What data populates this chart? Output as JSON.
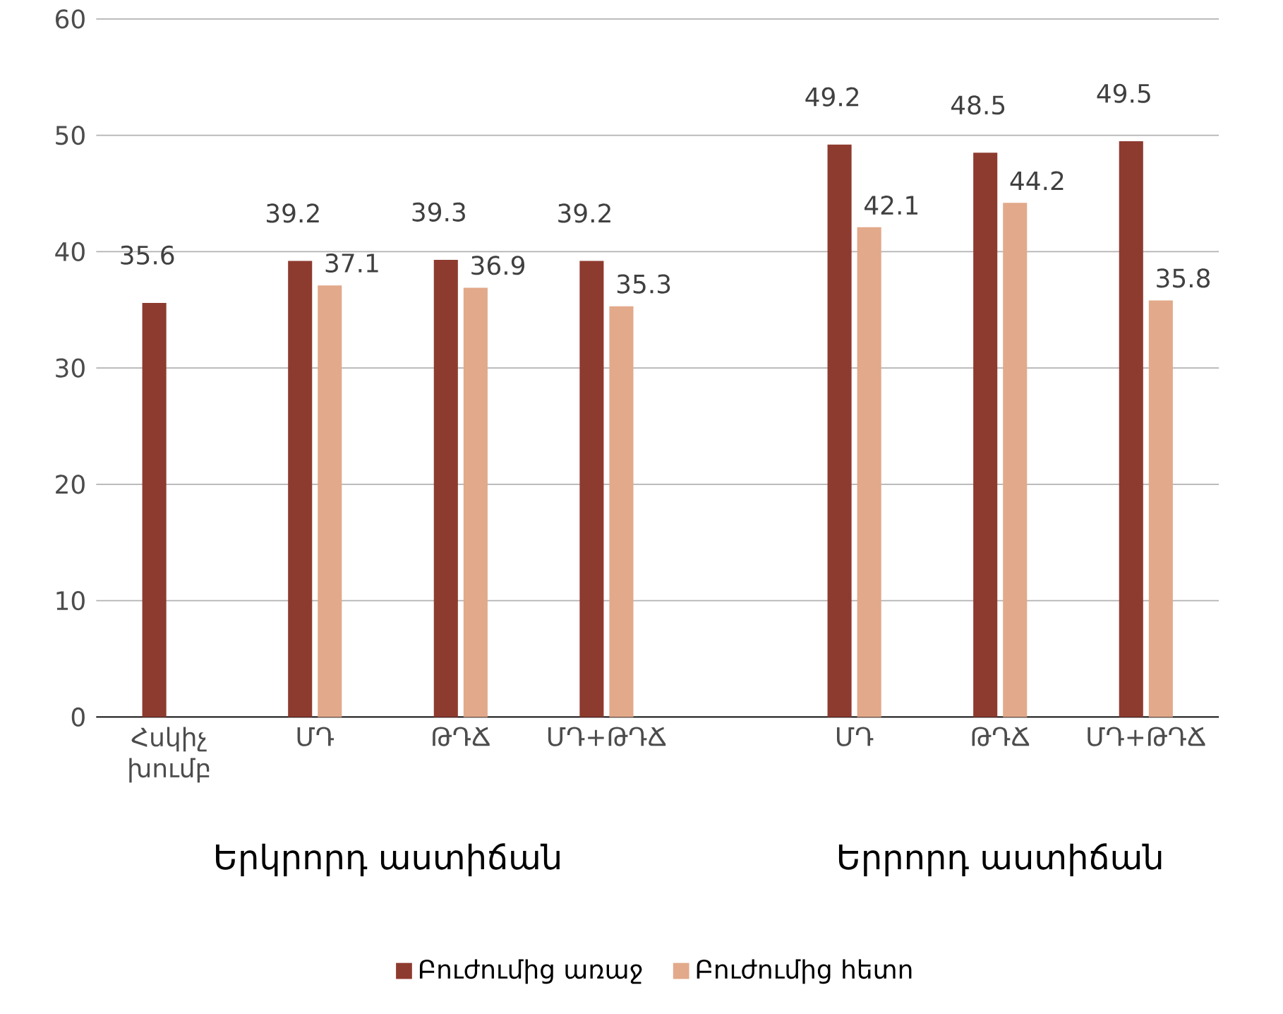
{
  "chart_data": {
    "type": "bar",
    "categories": [
      "Հսկիչ խումբ",
      "ՄԴ",
      "ԹԴՃ",
      "ՄԴ+ԹԴՃ",
      "ՄԴ",
      "ԹԴՃ",
      "ՄԴ+ԹԴՃ"
    ],
    "series": [
      {
        "name": "Բուժումից առաջ",
        "color": "#8e3b2f",
        "values": [
          35.6,
          39.2,
          39.3,
          39.2,
          49.2,
          48.5,
          49.5
        ]
      },
      {
        "name": "Բուժումից հետո",
        "color": "#e2a98a",
        "values": [
          null,
          37.1,
          36.9,
          35.3,
          42.1,
          44.2,
          35.8
        ]
      }
    ],
    "ylim": [
      0,
      60
    ],
    "yticks": [
      0,
      10,
      20,
      30,
      40,
      50,
      60
    ],
    "grid": "y",
    "legend": "bottom",
    "data_labels": true,
    "annotations": [
      "Երկրորդ աստիճան",
      "Երրորդ աստիճան"
    ]
  }
}
